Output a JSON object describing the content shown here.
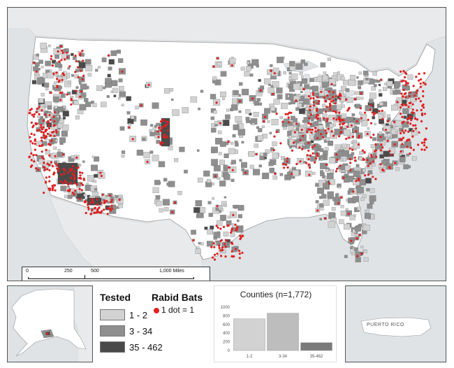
{
  "legend": {
    "tested_title": "Tested",
    "classes": [
      {
        "label": "1 - 2",
        "color": "#d2d2d2"
      },
      {
        "label": "3 - 34",
        "color": "#8f8f8f"
      },
      {
        "label": "35 - 462",
        "color": "#4a4a4a"
      }
    ],
    "rabid_title": "Rabid Bats",
    "dot_label": "1 dot = 1",
    "dot_color": "#e02020"
  },
  "scale_bar": {
    "ticks": [
      "0",
      "250",
      "500",
      "1,000 Miles"
    ]
  },
  "insets": {
    "pr_label": "PUERTO RICO"
  },
  "chart_data": {
    "type": "bar",
    "title": "Counties (n=1,772)",
    "categories": [
      "1-2",
      "3-34",
      "35-462"
    ],
    "values": [
      730,
      860,
      182
    ],
    "colors": [
      "#d2d2d2",
      "#bdbdbd",
      "#7a7a7a"
    ],
    "ylim": [
      0,
      1000
    ],
    "yticks": [
      "0",
      "200",
      "400",
      "600",
      "800",
      "1000"
    ],
    "xlabel": "",
    "ylabel": ""
  },
  "colors": {
    "water": "#dfe3e6",
    "land_untested": "#ffffff",
    "neighbor_land": "#e9eaeb"
  }
}
